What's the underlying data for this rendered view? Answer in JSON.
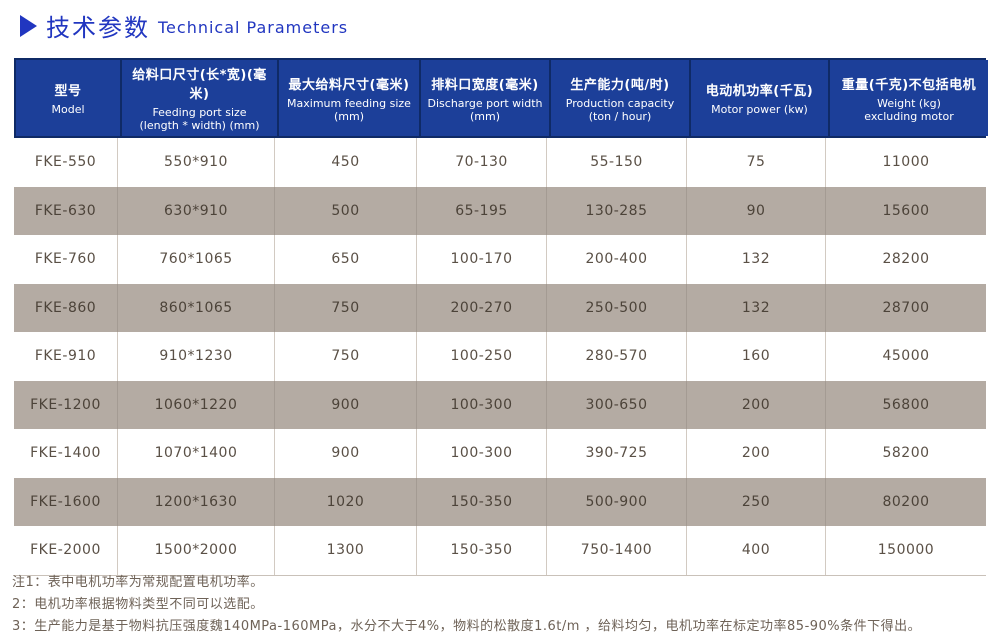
{
  "title": {
    "zh": "技术参数",
    "en": "Technical Parameters"
  },
  "table": {
    "columns": [
      {
        "zh": "型号",
        "en": "Model"
      },
      {
        "zh": "给料口尺寸(长*宽)(毫米)",
        "en": "Feeding port size\n(length * width) (mm)"
      },
      {
        "zh": "最大给料尺寸(毫米)",
        "en": "Maximum feeding size\n(mm)"
      },
      {
        "zh": "排料口宽度(毫米)",
        "en": "Discharge port width\n(mm)"
      },
      {
        "zh": "生产能力(吨/时)",
        "en": "Production capacity\n(ton / hour)"
      },
      {
        "zh": "电动机功率(千瓦)",
        "en": "Motor power (kw)"
      },
      {
        "zh": "重量(千克)不包括电机",
        "en": "Weight (kg)\nexcluding motor"
      }
    ],
    "rows": [
      [
        "FKE-550",
        "550*910",
        "450",
        "70-130",
        "55-150",
        "75",
        "11000"
      ],
      [
        "FKE-630",
        "630*910",
        "500",
        "65-195",
        "130-285",
        "90",
        "15600"
      ],
      [
        "FKE-760",
        "760*1065",
        "650",
        "100-170",
        "200-400",
        "132",
        "28200"
      ],
      [
        "FKE-860",
        "860*1065",
        "750",
        "200-270",
        "250-500",
        "132",
        "28700"
      ],
      [
        "FKE-910",
        "910*1230",
        "750",
        "100-250",
        "280-570",
        "160",
        "45000"
      ],
      [
        "FKE-1200",
        "1060*1220",
        "900",
        "100-300",
        "300-650",
        "200",
        "56800"
      ],
      [
        "FKE-1400",
        "1070*1400",
        "900",
        "100-300",
        "390-725",
        "200",
        "58200"
      ],
      [
        "FKE-1600",
        "1200*1630",
        "1020",
        "150-350",
        "500-900",
        "250",
        "80200"
      ],
      [
        "FKE-2000",
        "1500*2000",
        "1300",
        "150-350",
        "750-1400",
        "400",
        "150000"
      ]
    ]
  },
  "notes": [
    "注1：表中电机功率为常规配置电机功率。",
    "2：电机功率根据物料类型不同可以选配。",
    "3：生产能力是基于物料抗压强度魏140MPa-160MPa，水分不大于4%，物料的松散度1.6t/m ，给料均匀，电机功率在标定功率85-90%条件下得出。"
  ],
  "colors": {
    "title_blue": "#2136c0",
    "header_blue": "#1c3f99",
    "header_border": "#0f2a66",
    "alt_row_gray": "#b4aba3",
    "cell_text": "#5a5046",
    "note_text": "#6e6257"
  }
}
